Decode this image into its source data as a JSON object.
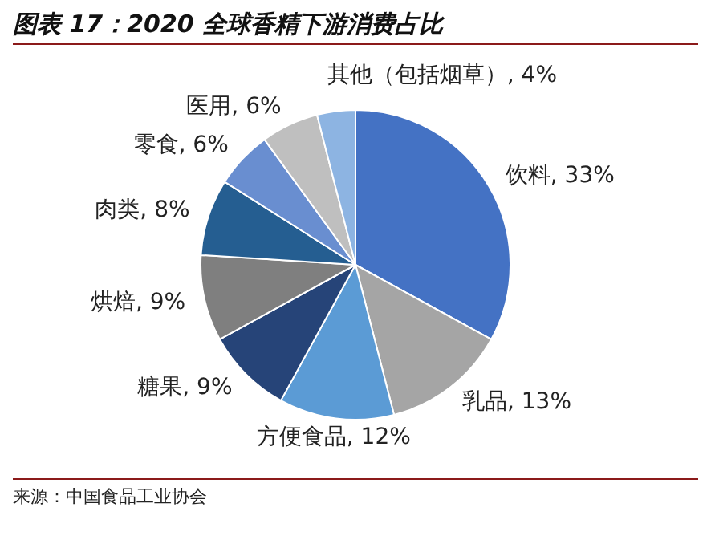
{
  "chart_data": {
    "type": "pie",
    "title": "图表 17：2020 全球香精下游消费占比",
    "categories": [
      "饮料",
      "乳品",
      "方便食品",
      "糖果",
      "烘焙",
      "肉类",
      "零食",
      "医用",
      "其他（包括烟草）"
    ],
    "values": [
      33,
      13,
      12,
      9,
      9,
      8,
      6,
      6,
      4
    ],
    "value_labels": [
      "33%",
      "13%",
      "12%",
      "9%",
      "9%",
      "8%",
      "6%",
      "6%",
      "4%"
    ],
    "colors": [
      "#4472c4",
      "#a5a5a5",
      "#5b9bd5",
      "#264478",
      "#7f7f7f",
      "#255e91",
      "#698ed0",
      "#bfbfbf",
      "#8db4e2"
    ],
    "legend": false,
    "annotations": [
      "来源：中国食品工业协会"
    ]
  }
}
